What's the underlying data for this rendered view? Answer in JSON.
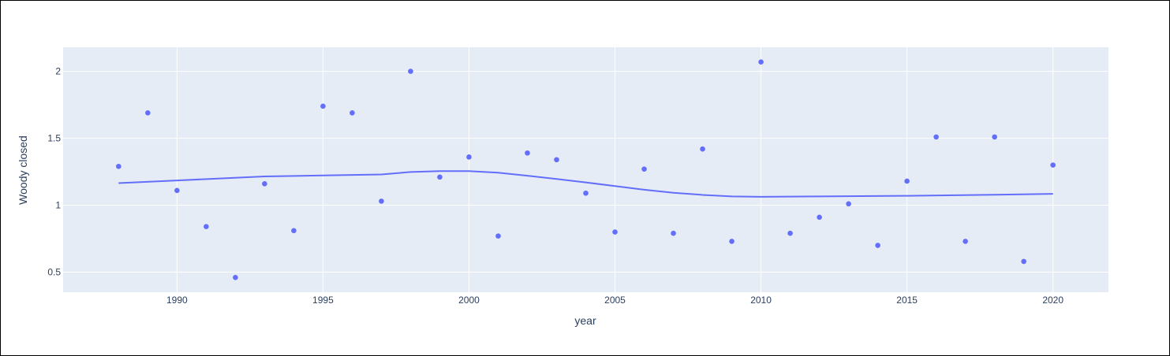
{
  "chart_data": {
    "type": "scatter",
    "title": "",
    "xlabel": "year",
    "ylabel": "Woody closed",
    "xlim": [
      1986.1,
      2021.9
    ],
    "ylim": [
      0.35,
      2.18
    ],
    "xticks": [
      1990,
      1995,
      2000,
      2005,
      2010,
      2015,
      2020
    ],
    "yticks": [
      0.5,
      1,
      1.5,
      2
    ],
    "ytick_labels": [
      "0.5",
      "1",
      "1.5",
      "2"
    ],
    "grid": true,
    "legend": "none",
    "colors": {
      "plot_bg": "#e5ecf6",
      "grid": "#ffffff",
      "marker": "#636efa",
      "line": "#636efa",
      "text": "#2a3f5f"
    },
    "series": [
      {
        "mode": "markers",
        "x": [
          1988,
          1989,
          1990,
          1991,
          1992,
          1993,
          1994,
          1995,
          1996,
          1997,
          1998,
          1999,
          2000,
          2001,
          2002,
          2003,
          2004,
          2005,
          2006,
          2007,
          2008,
          2009,
          2010,
          2011,
          2012,
          2013,
          2014,
          2015,
          2016,
          2017,
          2018,
          2019,
          2020
        ],
        "y": [
          1.29,
          1.69,
          1.11,
          0.84,
          0.46,
          1.16,
          0.81,
          1.74,
          1.69,
          1.03,
          2.0,
          1.21,
          1.36,
          0.77,
          1.39,
          1.34,
          1.09,
          0.8,
          1.27,
          0.79,
          1.42,
          0.73,
          2.07,
          0.79,
          0.91,
          1.01,
          0.7,
          1.18,
          1.51,
          0.73,
          1.51,
          0.58,
          1.3
        ]
      },
      {
        "mode": "lines",
        "x": [
          1988,
          1990,
          1993,
          1995,
          1997,
          1998,
          1999,
          2000,
          2001,
          2002,
          2003,
          2004,
          2005,
          2006,
          2007,
          2008,
          2009,
          2010,
          2012,
          2015,
          2018,
          2020
        ],
        "y": [
          1.165,
          1.185,
          1.215,
          1.222,
          1.23,
          1.248,
          1.255,
          1.255,
          1.243,
          1.22,
          1.196,
          1.17,
          1.143,
          1.116,
          1.093,
          1.077,
          1.066,
          1.063,
          1.066,
          1.07,
          1.078,
          1.085
        ]
      }
    ]
  }
}
